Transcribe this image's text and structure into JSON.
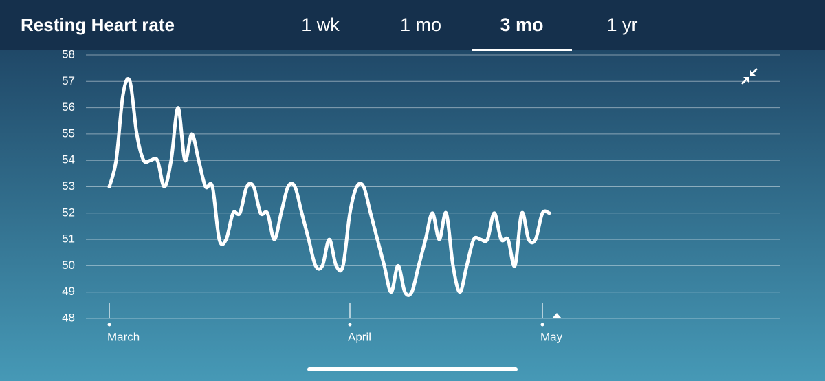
{
  "tabs": [
    "1 wk",
    "1 mo",
    "3 mo",
    "1 yr"
  ],
  "selected_tab": "3 mo",
  "chart_data": {
    "type": "line",
    "title": "Resting Heart rate",
    "categories": [
      "March",
      null,
      null,
      null,
      null,
      null,
      null,
      null,
      null,
      null,
      null,
      null,
      null,
      null,
      null,
      null,
      null,
      null,
      null,
      null,
      null,
      null,
      null,
      null,
      null,
      null,
      null,
      null,
      null,
      null,
      null,
      null,
      null,
      null,
      null,
      "April",
      null,
      null,
      null,
      null,
      null,
      null,
      null,
      null,
      null,
      null,
      null,
      null,
      null,
      null,
      null,
      null,
      null,
      null,
      null,
      null,
      null,
      null,
      null,
      null,
      null,
      null,
      null,
      "May",
      null
    ],
    "series": [
      {
        "name": "Resting Heart rate",
        "color": "#ffffff",
        "values": [
          53,
          54,
          56.5,
          57,
          55,
          54,
          54,
          54,
          53,
          54,
          56,
          54,
          55,
          54,
          53,
          53,
          51,
          51,
          52,
          52,
          53,
          53,
          52,
          52,
          51,
          52,
          53,
          53,
          52,
          51,
          50,
          50,
          51,
          50,
          50,
          52,
          53,
          53,
          52,
          51,
          50,
          49,
          50,
          49,
          49,
          50,
          51,
          52,
          51,
          52,
          50,
          49,
          50,
          51,
          51,
          51,
          52,
          51,
          51,
          50,
          52,
          51,
          51,
          52,
          52
        ]
      }
    ],
    "ylim": [
      48,
      58
    ],
    "yticks": [
      48,
      49,
      50,
      51,
      52,
      53,
      54,
      55,
      56,
      57,
      58
    ],
    "grid": true
  }
}
